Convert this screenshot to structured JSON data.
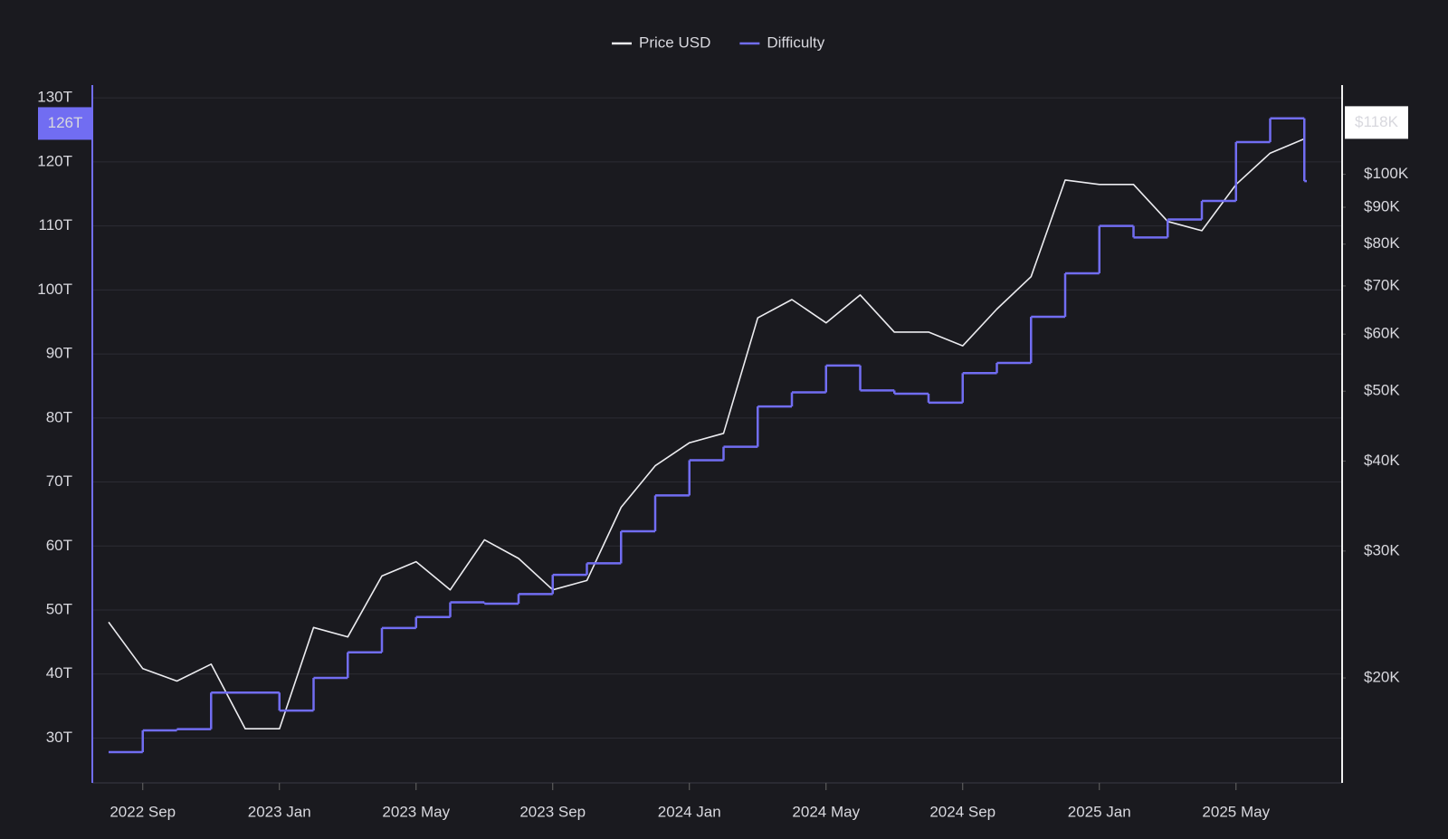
{
  "chart_data": {
    "type": "line",
    "x": [
      "2022-08",
      "2022-09",
      "2022-10",
      "2022-11",
      "2022-12",
      "2023-01",
      "2023-02",
      "2023-03",
      "2023-04",
      "2023-05",
      "2023-06",
      "2023-07",
      "2023-08",
      "2023-09",
      "2023-10",
      "2023-11",
      "2023-12",
      "2024-01",
      "2024-02",
      "2024-03",
      "2024-04",
      "2024-05",
      "2024-06",
      "2024-07",
      "2024-08",
      "2024-09",
      "2024-10",
      "2024-11",
      "2024-12",
      "2025-01",
      "2025-02",
      "2025-03",
      "2025-04",
      "2025-05",
      "2025-06",
      "2025-07"
    ],
    "xlim": [
      "2022-08",
      "2025-08"
    ],
    "xticks": [
      {
        "value": "2022-09",
        "label": "2022 Sep"
      },
      {
        "value": "2023-01",
        "label": "2023 Jan"
      },
      {
        "value": "2023-05",
        "label": "2023 May"
      },
      {
        "value": "2023-09",
        "label": "2023 Sep"
      },
      {
        "value": "2024-01",
        "label": "2024 Jan"
      },
      {
        "value": "2024-05",
        "label": "2024 May"
      },
      {
        "value": "2024-09",
        "label": "2024 Sep"
      },
      {
        "value": "2025-01",
        "label": "2025 Jan"
      },
      {
        "value": "2025-05",
        "label": "2025 May"
      }
    ],
    "ylim": [
      23,
      132
    ],
    "yticks": [
      {
        "value": 30,
        "label": "30T"
      },
      {
        "value": 40,
        "label": "40T"
      },
      {
        "value": 50,
        "label": "50T"
      },
      {
        "value": 60,
        "label": "60T"
      },
      {
        "value": 70,
        "label": "70T"
      },
      {
        "value": 80,
        "label": "80T"
      },
      {
        "value": 90,
        "label": "90T"
      },
      {
        "value": 100,
        "label": "100T"
      },
      {
        "value": 110,
        "label": "110T"
      },
      {
        "value": 120,
        "label": "120T"
      },
      {
        "value": 130,
        "label": "130T"
      }
    ],
    "y2lim": [
      14300,
      133000
    ],
    "y2scale": "log",
    "y2ticks": [
      {
        "value": 20000,
        "label": "$20K"
      },
      {
        "value": 30000,
        "label": "$30K"
      },
      {
        "value": 40000,
        "label": "$40K"
      },
      {
        "value": 50000,
        "label": "$50K"
      },
      {
        "value": 60000,
        "label": "$60K"
      },
      {
        "value": 70000,
        "label": "$70K"
      },
      {
        "value": 80000,
        "label": "$80K"
      },
      {
        "value": 90000,
        "label": "$90K"
      },
      {
        "value": 100000,
        "label": "$100K"
      }
    ],
    "grid": true,
    "legend": "top",
    "series": [
      {
        "name": "Price USD",
        "color": "#ececf0",
        "axis": "y2",
        "style": "line",
        "values": [
          23900,
          20600,
          19800,
          20900,
          17000,
          17000,
          23500,
          22800,
          27700,
          29000,
          26500,
          31100,
          29300,
          26500,
          27300,
          34500,
          39400,
          42400,
          43700,
          63200,
          67000,
          62200,
          68000,
          60400,
          60400,
          57800,
          65000,
          72100,
          98200,
          96800,
          96800,
          86000,
          83500,
          96800,
          107000,
          112000
        ],
        "current": {
          "value": 118000,
          "label": "$118K"
        }
      },
      {
        "name": "Difficulty",
        "color": "#716df2",
        "style": "step",
        "values": [
          27.8,
          31.2,
          31.4,
          37.1,
          37.1,
          34.3,
          39.4,
          43.4,
          47.2,
          48.9,
          51.2,
          51.0,
          52.5,
          55.5,
          57.3,
          62.3,
          67.9,
          73.4,
          75.5,
          81.8,
          84.0,
          88.2,
          84.3,
          83.8,
          82.4,
          87.0,
          88.6,
          95.8,
          102.6,
          110.0,
          108.2,
          111.0,
          113.9,
          123.1,
          126.8,
          117.0
        ],
        "current": {
          "value": 126,
          "label": "126T"
        }
      }
    ]
  }
}
